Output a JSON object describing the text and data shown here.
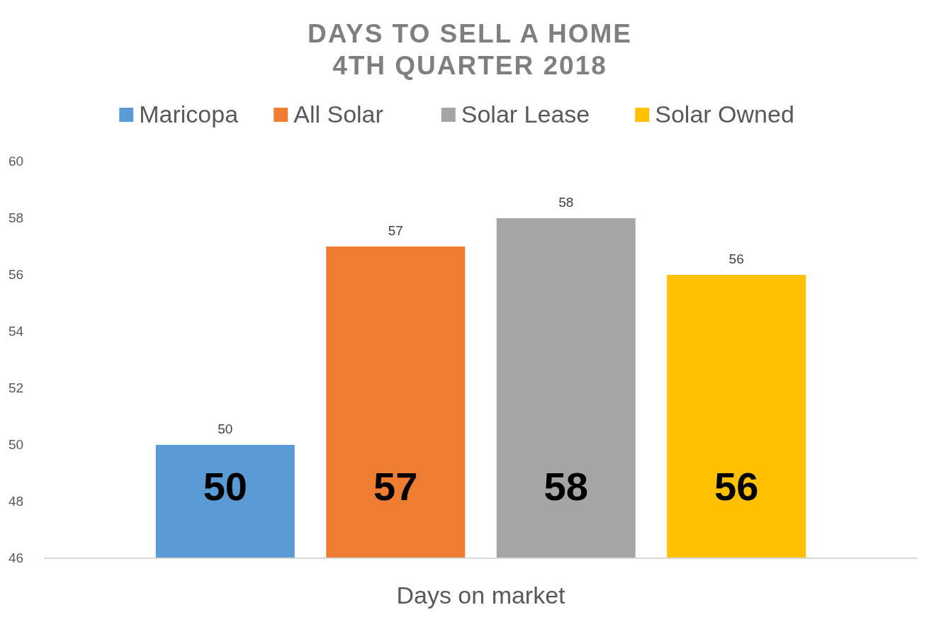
{
  "chart_data": {
    "type": "bar",
    "title": "DAYS TO SELL A HOME\n4TH QUARTER 2018",
    "categories": [
      "Days on market"
    ],
    "series": [
      {
        "name": "Maricopa",
        "color": "#5b9bd5",
        "values": [
          50
        ]
      },
      {
        "name": "All Solar",
        "color": "#ed7d31",
        "values": [
          57
        ]
      },
      {
        "name": "Solar Lease",
        "color": "#a5a5a5",
        "values": [
          58
        ]
      },
      {
        "name": "Solar Owned",
        "color": "#ffc000",
        "values": [
          56
        ]
      }
    ],
    "annotations": [
      "50",
      "57",
      "58",
      "56"
    ],
    "ylim": [
      46,
      60
    ],
    "yticks": [
      46,
      48,
      50,
      52,
      54,
      56,
      58,
      60
    ],
    "data_labels": true,
    "legend": "top"
  }
}
